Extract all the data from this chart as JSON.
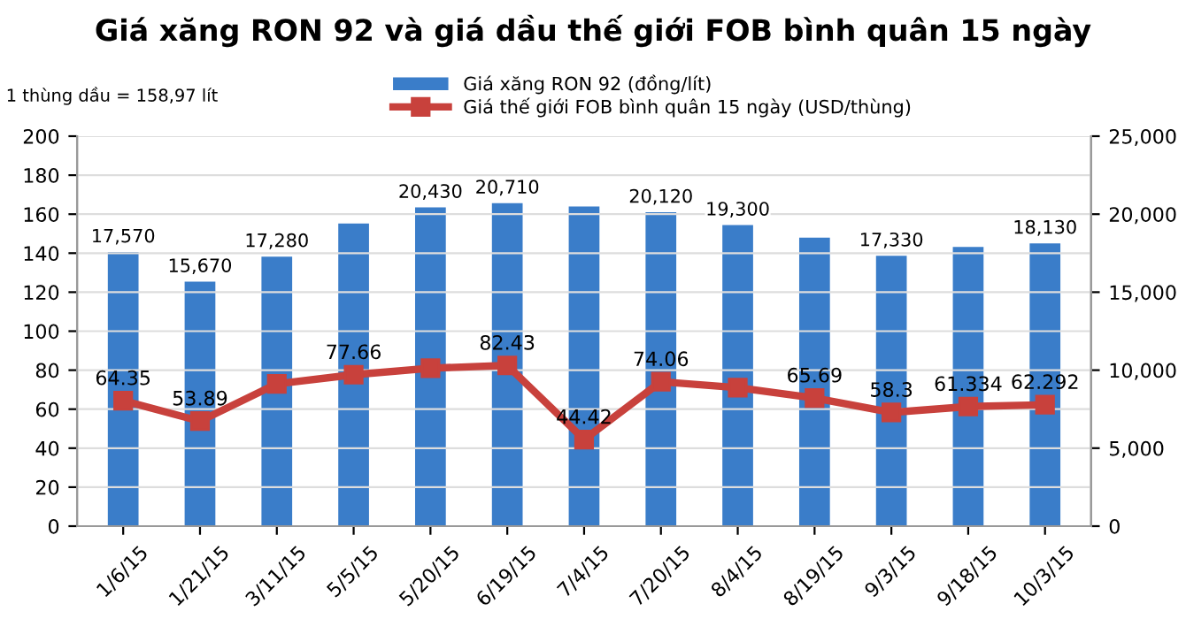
{
  "chart_data": {
    "type": "bar",
    "title": "Giá xăng RON 92 và giá dầu thế giới FOB bình quân 15 ngày",
    "annotations": [
      "1 thùng dầu = 158,97 lít"
    ],
    "categories": [
      "1/6/15",
      "1/21/15",
      "3/11/15",
      "5/5/15",
      "5/20/15",
      "6/19/15",
      "7/4/15",
      "7/20/15",
      "8/4/15",
      "8/19/15",
      "9/3/15",
      "9/18/15",
      "10/3/15"
    ],
    "series": [
      {
        "name": "Giá xăng RON 92 (đồng/lít)",
        "axis": "y2",
        "color": "#3a7dc9",
        "values": [
          17570,
          15670,
          17280,
          19400,
          20430,
          20710,
          20500,
          20120,
          19300,
          18500,
          17330,
          17900,
          18130
        ],
        "value_labels": [
          "17,570",
          "15,670",
          "17,280",
          null,
          "20,430",
          "20,710",
          null,
          "20,120",
          "19,300",
          null,
          "17,330",
          null,
          "18,130"
        ]
      },
      {
        "name": "Giá thế giới FOB bình quân 15 ngày (USD/thùng)",
        "type": "line",
        "axis": "y",
        "color": "#c8413c",
        "marker": "square",
        "line_style": "solid",
        "values": [
          64.35,
          53.89,
          73,
          77.66,
          81,
          82.43,
          44.42,
          74.06,
          71,
          65.69,
          58.3,
          61.334,
          62.292
        ],
        "value_labels": [
          "64.35",
          "53.89",
          null,
          "77.66",
          null,
          "82.43",
          "44.42",
          "74.06",
          null,
          "65.69",
          "58.3",
          "61.334",
          "62.292"
        ]
      }
    ],
    "ylim": [
      0,
      200
    ],
    "yticks": [
      0,
      20,
      40,
      60,
      80,
      100,
      120,
      140,
      160,
      180,
      200
    ],
    "y2lim": [
      0,
      25000
    ],
    "y2ticks": [
      {
        "value": 0,
        "label": "0"
      },
      {
        "value": 5000,
        "label": "5,000"
      },
      {
        "value": 10000,
        "label": "10,000"
      },
      {
        "value": 15000,
        "label": "15,000"
      },
      {
        "value": 20000,
        "label": "20,000"
      },
      {
        "value": 25000,
        "label": "25,000"
      }
    ],
    "grid": "y",
    "legend": "top"
  }
}
